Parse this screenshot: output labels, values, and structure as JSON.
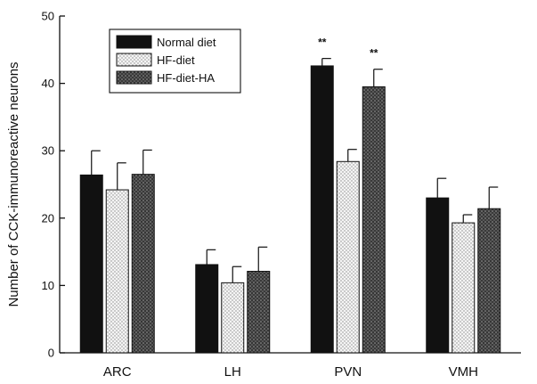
{
  "chart_data": {
    "type": "bar",
    "title": "",
    "xlabel": "",
    "ylabel": "Number of CCK-immunoreactive neurons",
    "ylim": [
      0,
      50
    ],
    "yticks": [
      0,
      10,
      20,
      30,
      40,
      50
    ],
    "categories": [
      "ARC",
      "LH",
      "PVN",
      "VMH"
    ],
    "series": [
      {
        "name": "Normal diet",
        "values": [
          26.4,
          13.1,
          42.6,
          23.0
        ],
        "errors": [
          3.6,
          2.2,
          1.1,
          2.9
        ],
        "color": "#111111",
        "pattern": "solid"
      },
      {
        "name": "HF-diet",
        "values": [
          24.2,
          10.4,
          28.4,
          19.3
        ],
        "errors": [
          4.0,
          2.4,
          1.8,
          1.2
        ],
        "color": "#e6e6e6",
        "pattern": "dotted"
      },
      {
        "name": "HF-diet-HA",
        "values": [
          26.5,
          12.1,
          39.5,
          21.4
        ],
        "errors": [
          3.6,
          3.6,
          2.6,
          3.2
        ],
        "color": "#555555",
        "pattern": "stippled"
      }
    ],
    "annotations": [
      {
        "category": "PVN",
        "series": "Normal diet",
        "text": "**"
      },
      {
        "category": "PVN",
        "series": "HF-diet-HA",
        "text": "**"
      }
    ],
    "legend_position": "top-left",
    "grid": false
  }
}
